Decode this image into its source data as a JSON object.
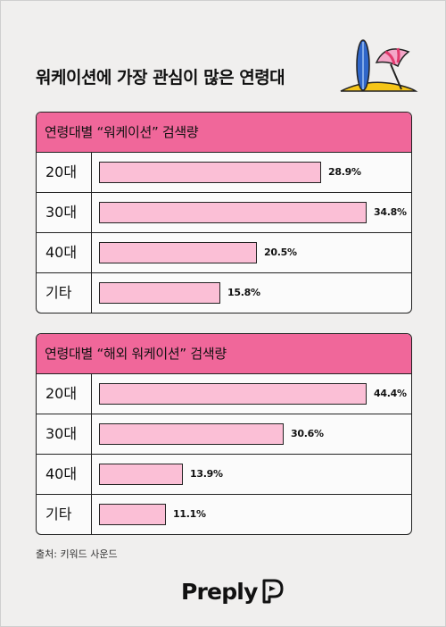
{
  "title": "워케이션에 가장 관심이 많은 연령대",
  "source": "출처: 키워드 사운드",
  "brand": "Preply",
  "colors": {
    "header": "#f0679a",
    "bar": "#fbbfd6",
    "outline": "#222222",
    "panel": "#fbfbfb",
    "background": "#f0efee"
  },
  "chart_data": [
    {
      "type": "bar",
      "orientation": "horizontal",
      "title": "연령대별 “워케이션” 검색량",
      "categories": [
        "20대",
        "30대",
        "40대",
        "기타"
      ],
      "values": [
        28.9,
        34.8,
        20.5,
        15.8
      ],
      "value_labels": [
        "28.9%",
        "34.8%",
        "20.5%",
        "15.8%"
      ],
      "xlim": [
        0,
        34.8
      ]
    },
    {
      "type": "bar",
      "orientation": "horizontal",
      "title": "연령대별 “해외 워케이션” 검색량",
      "categories": [
        "20대",
        "30대",
        "40대",
        "기타"
      ],
      "values": [
        44.4,
        30.6,
        13.9,
        11.1
      ],
      "value_labels": [
        "44.4%",
        "30.6%",
        "13.9%",
        "11.1%"
      ],
      "xlim": [
        0,
        44.4
      ]
    }
  ]
}
